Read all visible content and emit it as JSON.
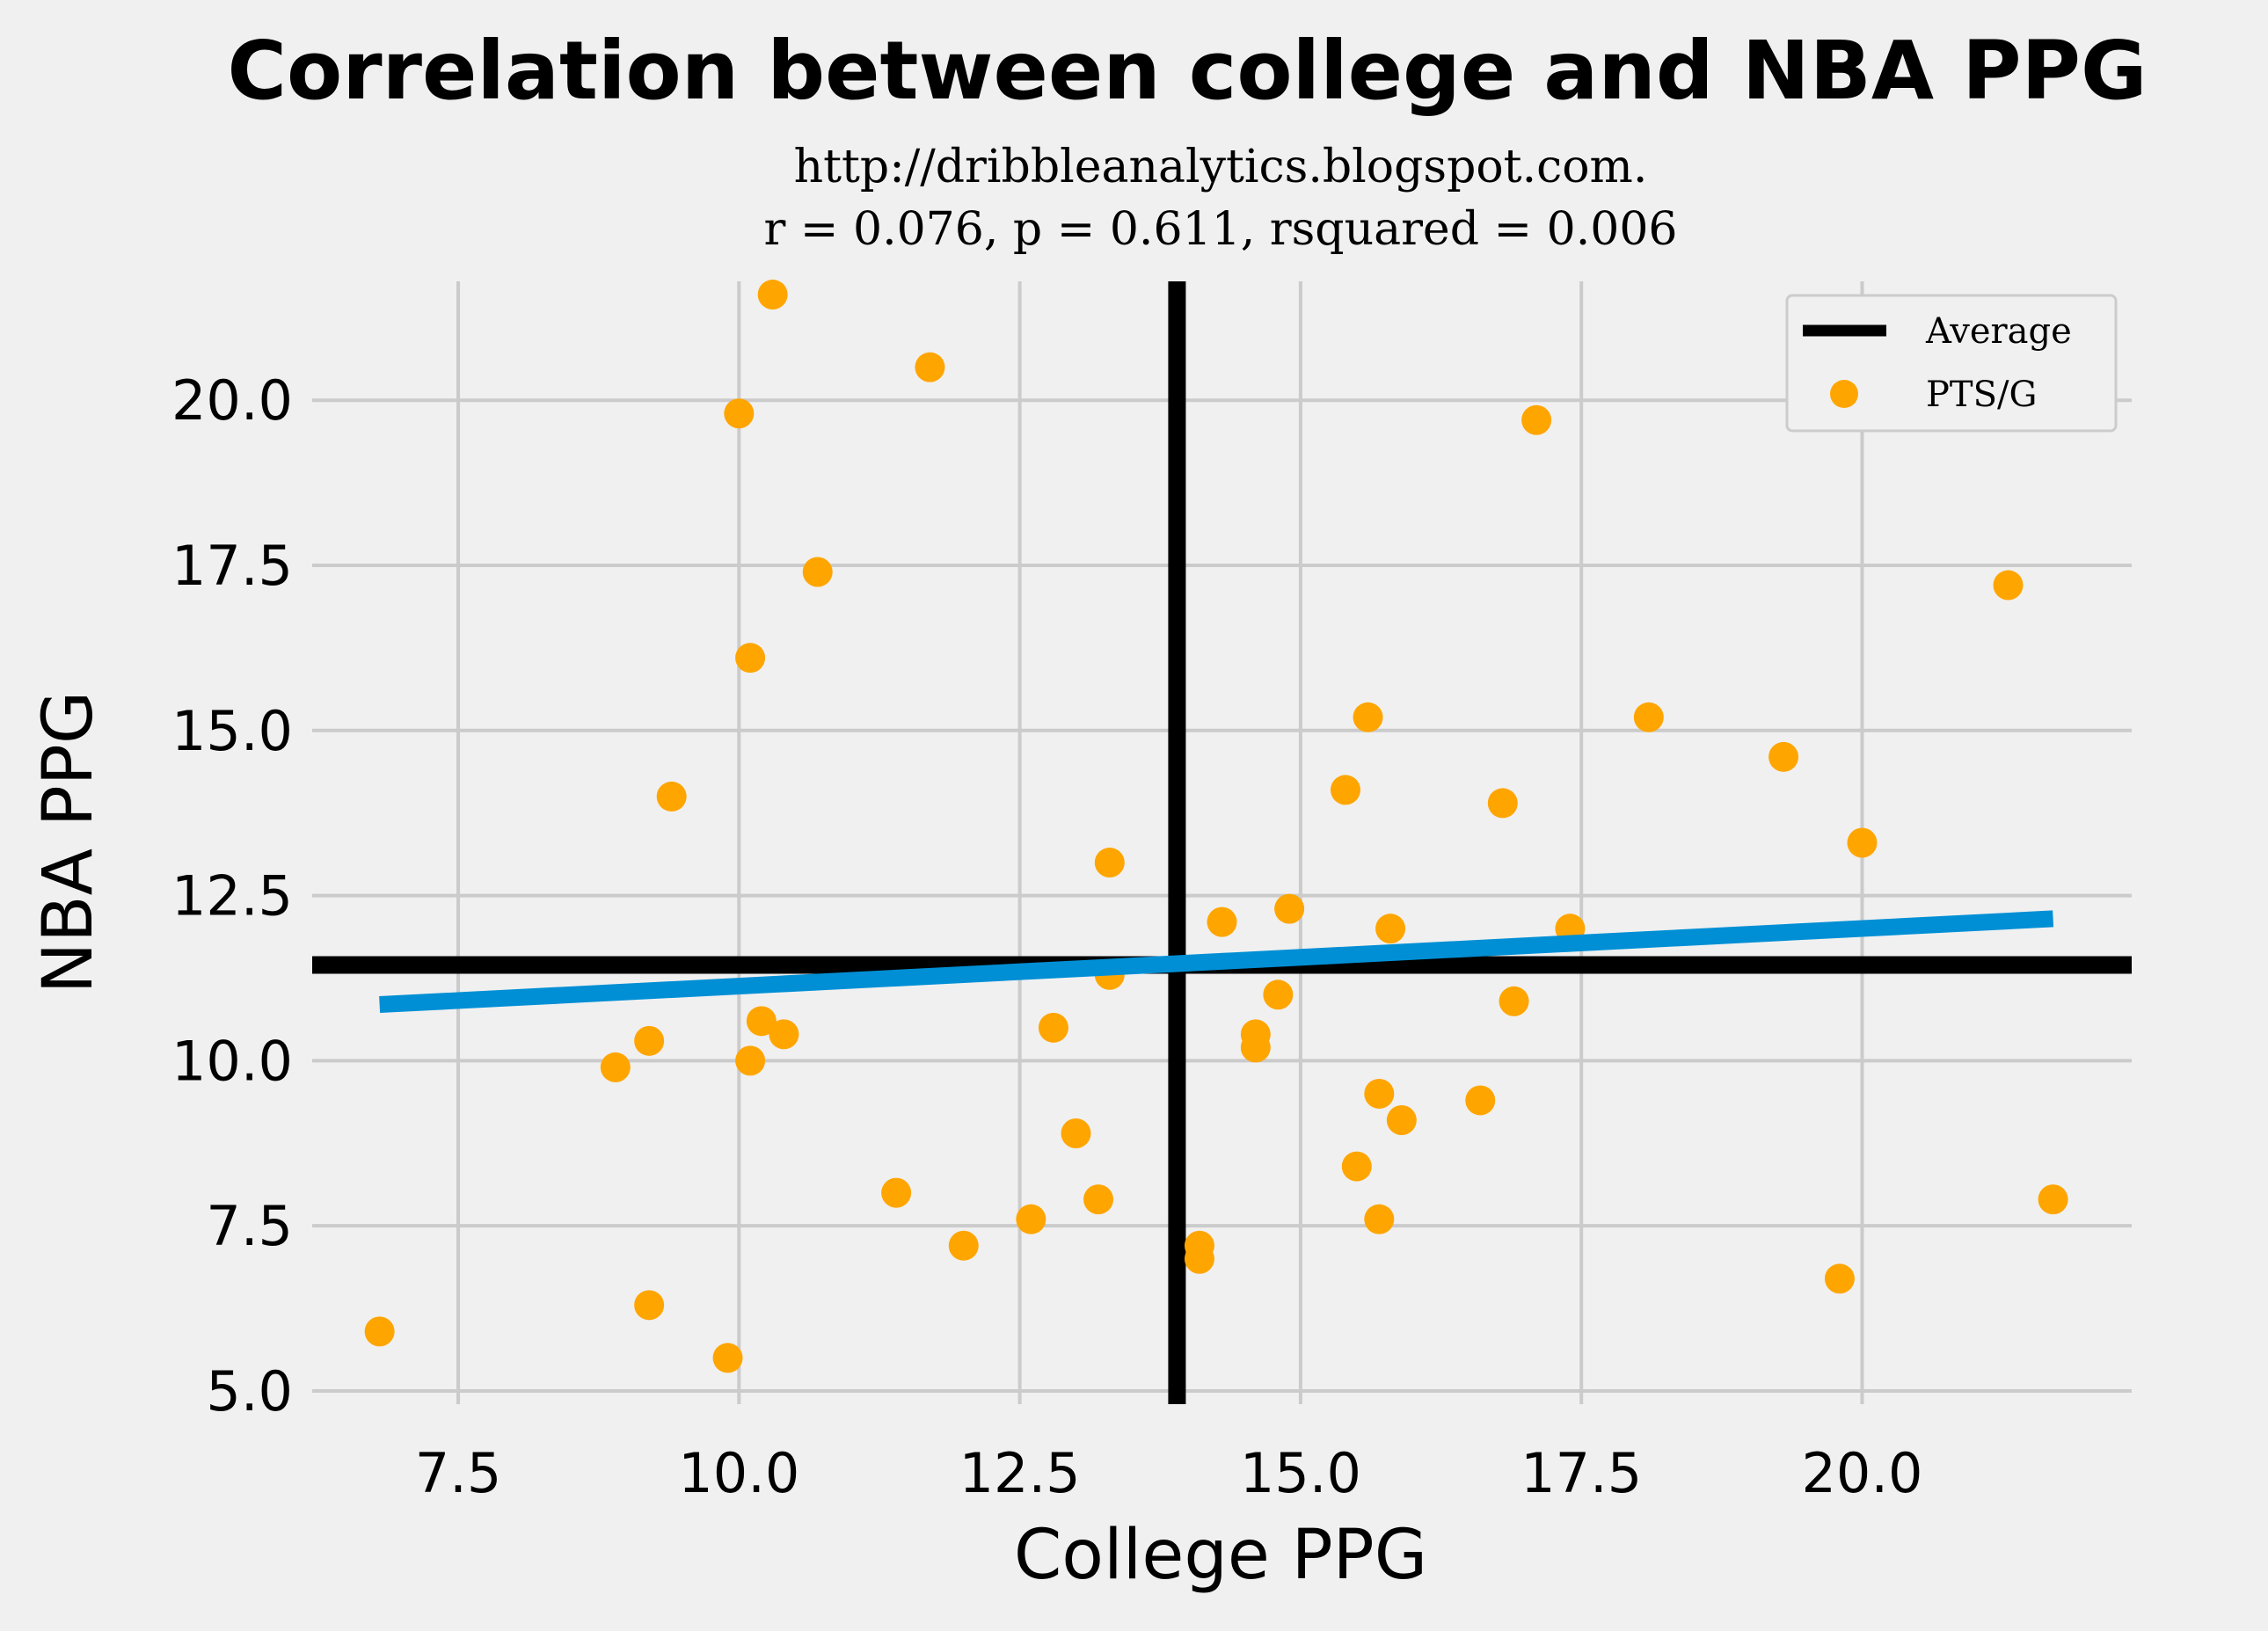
{
  "chart_data": {
    "type": "scatter",
    "title": "Correlation between college and NBA PPG",
    "subtitle_lines": [
      "http://dribbleanalytics.blogspot.com.",
      "r = 0.076, p = 0.611, rsquared = 0.006"
    ],
    "xlabel": "College PPG",
    "ylabel": "NBA PPG",
    "xlim": [
      6.2,
      22.4
    ],
    "ylim": [
      4.8,
      21.8
    ],
    "x_ticks": [
      7.5,
      10.0,
      12.5,
      15.0,
      17.5,
      20.0
    ],
    "y_ticks": [
      5.0,
      7.5,
      10.0,
      12.5,
      15.0,
      17.5,
      20.0
    ],
    "x_tick_labels": [
      "7.5",
      "10.0",
      "12.5",
      "15.0",
      "17.5",
      "20.0"
    ],
    "y_tick_labels": [
      "5.0",
      "7.5",
      "10.0",
      "12.5",
      "15.0",
      "17.5",
      "20.0"
    ],
    "grid": true,
    "legend_position": "top-right",
    "legend": [
      {
        "label": "Average",
        "kind": "line"
      },
      {
        "label": "PTS/G",
        "kind": "marker"
      }
    ],
    "average": {
      "x": 13.9,
      "y": 11.45
    },
    "trend_line": {
      "x": [
        6.8,
        21.7
      ],
      "y": [
        10.85,
        12.15
      ]
    },
    "colors": {
      "points": "#ffa500",
      "average": "#000000",
      "trend": "#008fd5",
      "background": "#f0f0f0",
      "grid": "#cbcbcb"
    },
    "series": [
      {
        "name": "PTS/G",
        "points": [
          [
            10.3,
            21.6
          ],
          [
            11.7,
            20.5
          ],
          [
            10.0,
            19.8
          ],
          [
            17.1,
            19.7
          ],
          [
            10.7,
            17.4
          ],
          [
            21.3,
            17.2
          ],
          [
            10.1,
            16.1
          ],
          [
            15.6,
            15.2
          ],
          [
            18.1,
            15.2
          ],
          [
            19.3,
            14.6
          ],
          [
            15.4,
            14.1
          ],
          [
            9.4,
            14.0
          ],
          [
            16.8,
            13.9
          ],
          [
            20.0,
            13.3
          ],
          [
            13.3,
            13.0
          ],
          [
            14.9,
            12.3
          ],
          [
            14.3,
            12.1
          ],
          [
            15.8,
            12.0
          ],
          [
            17.4,
            12.0
          ],
          [
            13.3,
            11.3
          ],
          [
            14.8,
            11.0
          ],
          [
            16.9,
            10.9
          ],
          [
            10.2,
            10.6
          ],
          [
            12.8,
            10.5
          ],
          [
            10.4,
            10.4
          ],
          [
            14.6,
            10.4
          ],
          [
            9.2,
            10.3
          ],
          [
            14.6,
            10.2
          ],
          [
            10.1,
            10.0
          ],
          [
            8.9,
            9.9
          ],
          [
            15.7,
            9.5
          ],
          [
            16.6,
            9.4
          ],
          [
            15.9,
            9.1
          ],
          [
            13.0,
            8.9
          ],
          [
            15.5,
            8.4
          ],
          [
            11.4,
            8.0
          ],
          [
            13.2,
            7.9
          ],
          [
            21.7,
            7.9
          ],
          [
            12.6,
            7.6
          ],
          [
            15.7,
            7.6
          ],
          [
            12.0,
            7.2
          ],
          [
            14.1,
            7.2
          ],
          [
            14.1,
            7.0
          ],
          [
            19.8,
            6.7
          ],
          [
            9.2,
            6.3
          ],
          [
            6.8,
            5.9
          ],
          [
            9.9,
            5.5
          ]
        ]
      }
    ]
  }
}
